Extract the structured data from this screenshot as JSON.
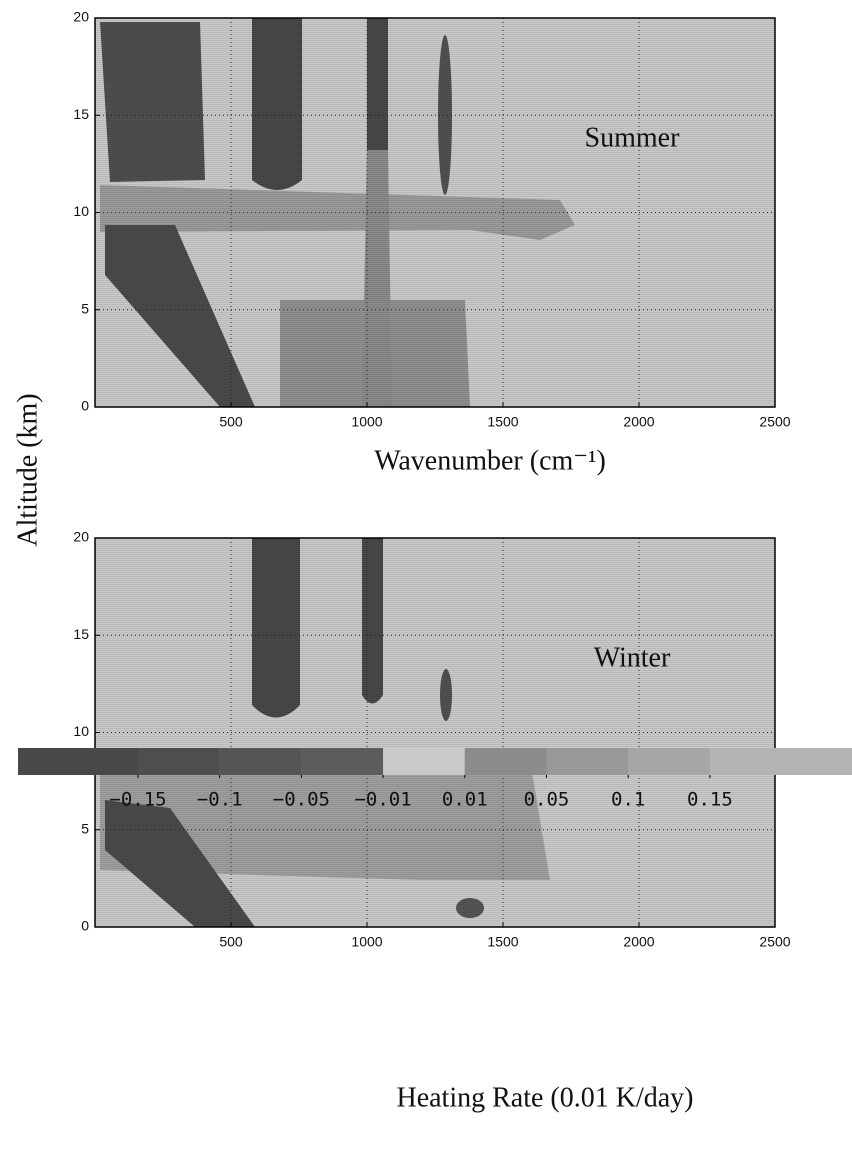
{
  "chart_data": [
    {
      "type": "heatmap",
      "annotation": "Summer",
      "xlabel": "Wavenumber (cm⁻¹)",
      "ylabel": "Altitude (km)",
      "xlim": [
        0,
        2500
      ],
      "ylim": [
        0,
        20
      ],
      "xticks": [
        500,
        1000,
        1500,
        2000,
        2500
      ],
      "yticks": [
        0,
        5,
        10,
        15,
        20
      ],
      "grid": true
    },
    {
      "type": "heatmap",
      "annotation": "Winter",
      "xlim": [
        0,
        2500
      ],
      "ylim": [
        0,
        20
      ],
      "xticks": [
        500,
        1000,
        1500,
        2000,
        2500
      ],
      "yticks": [
        0,
        5,
        10,
        15,
        20
      ],
      "grid": true
    }
  ],
  "colorbar": {
    "label": "Heating Rate (0.01 K/day)",
    "ticks": [
      {
        "value": -0.15,
        "label": "−0.15"
      },
      {
        "value": -0.1,
        "label": "−0.1"
      },
      {
        "value": -0.05,
        "label": "−0.05"
      },
      {
        "value": -0.01,
        "label": "−0.01"
      },
      0.01,
      0.05,
      0.1,
      0.15
    ],
    "colors": [
      "#484848",
      "#4e4e4e",
      "#555555",
      "#5c5c5c",
      "#c9c9c9",
      "#8c8c8c",
      "#999999",
      "#a6a6a6",
      "#b4b4b4"
    ]
  }
}
